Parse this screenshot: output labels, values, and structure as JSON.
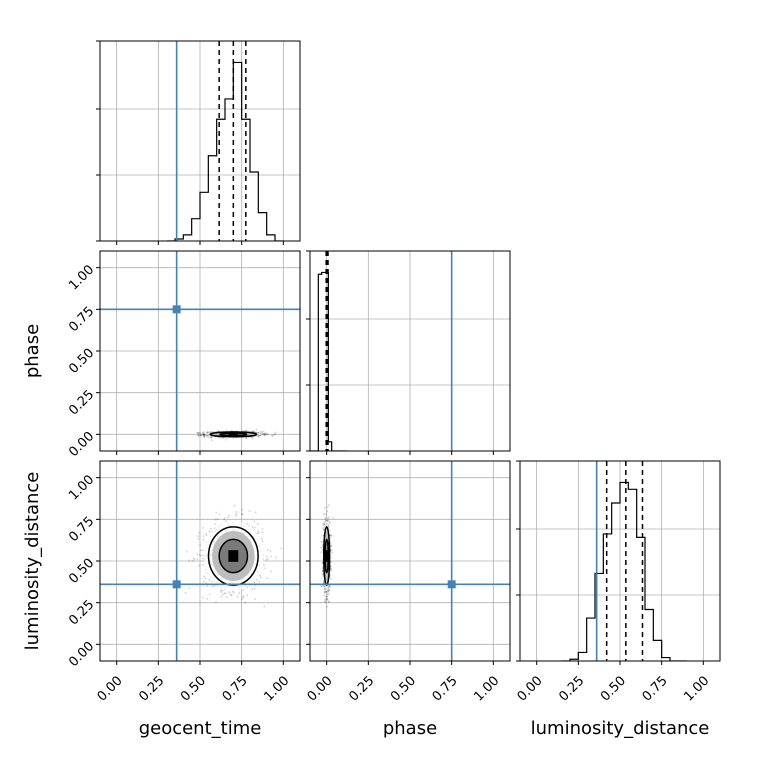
{
  "chart_data": {
    "type": "corner",
    "parameters": [
      "geocent_time",
      "phase",
      "luminosity_distance"
    ],
    "truths": {
      "geocent_time": 0.36,
      "phase": 0.75,
      "luminosity_distance": 0.36
    },
    "axis_range": [
      -0.1,
      1.1
    ],
    "tick_values": [
      0.0,
      0.25,
      0.5,
      0.75,
      1.0
    ],
    "tick_labels": [
      "0.00",
      "0.25",
      "0.50",
      "0.75",
      "1.00"
    ],
    "grid": true,
    "truth_color": "#4682b4",
    "marginals": [
      {
        "parameter": "geocent_time",
        "bin_edges": [
          0.3,
          0.35,
          0.4,
          0.45,
          0.5,
          0.55,
          0.6,
          0.65,
          0.7,
          0.75,
          0.8,
          0.85,
          0.9,
          0.95,
          1.0
        ],
        "counts": [
          0,
          1,
          3,
          11,
          24,
          42,
          60,
          70,
          88,
          60,
          34,
          14,
          3,
          0
        ],
        "quantiles": [
          0.615,
          0.7,
          0.775
        ]
      },
      {
        "parameter": "phase",
        "bin_edges": [
          -0.1,
          -0.05,
          -0.03,
          0.01,
          0.03,
          0.07,
          0.12
        ],
        "counts": [
          0,
          96,
          97,
          5,
          0,
          0
        ],
        "quantiles": [
          -0.003,
          0.002,
          0.008
        ]
      },
      {
        "parameter": "luminosity_distance",
        "bin_edges": [
          0.15,
          0.2,
          0.25,
          0.3,
          0.35,
          0.4,
          0.45,
          0.5,
          0.55,
          0.6,
          0.65,
          0.7,
          0.75,
          0.8,
          0.85,
          0.9
        ],
        "counts": [
          0,
          1,
          5,
          25,
          51,
          74,
          92,
          104,
          100,
          72,
          30,
          12,
          2,
          0,
          0
        ],
        "quantiles": [
          0.42,
          0.535,
          0.635
        ]
      }
    ],
    "joint": [
      {
        "x": "geocent_time",
        "y": "phase",
        "center": [
          0.7,
          0.0
        ],
        "sigma": [
          0.08,
          0.008
        ],
        "contours": [
          1,
          2
        ]
      },
      {
        "x": "geocent_time",
        "y": "luminosity_distance",
        "center": [
          0.7,
          0.53
        ],
        "sigma": [
          0.085,
          0.1
        ],
        "contours": [
          1,
          2
        ]
      },
      {
        "x": "phase",
        "y": "luminosity_distance",
        "center": [
          0.0,
          0.53
        ],
        "sigma": [
          0.01,
          0.1
        ],
        "contours": [
          1,
          2
        ]
      }
    ]
  }
}
